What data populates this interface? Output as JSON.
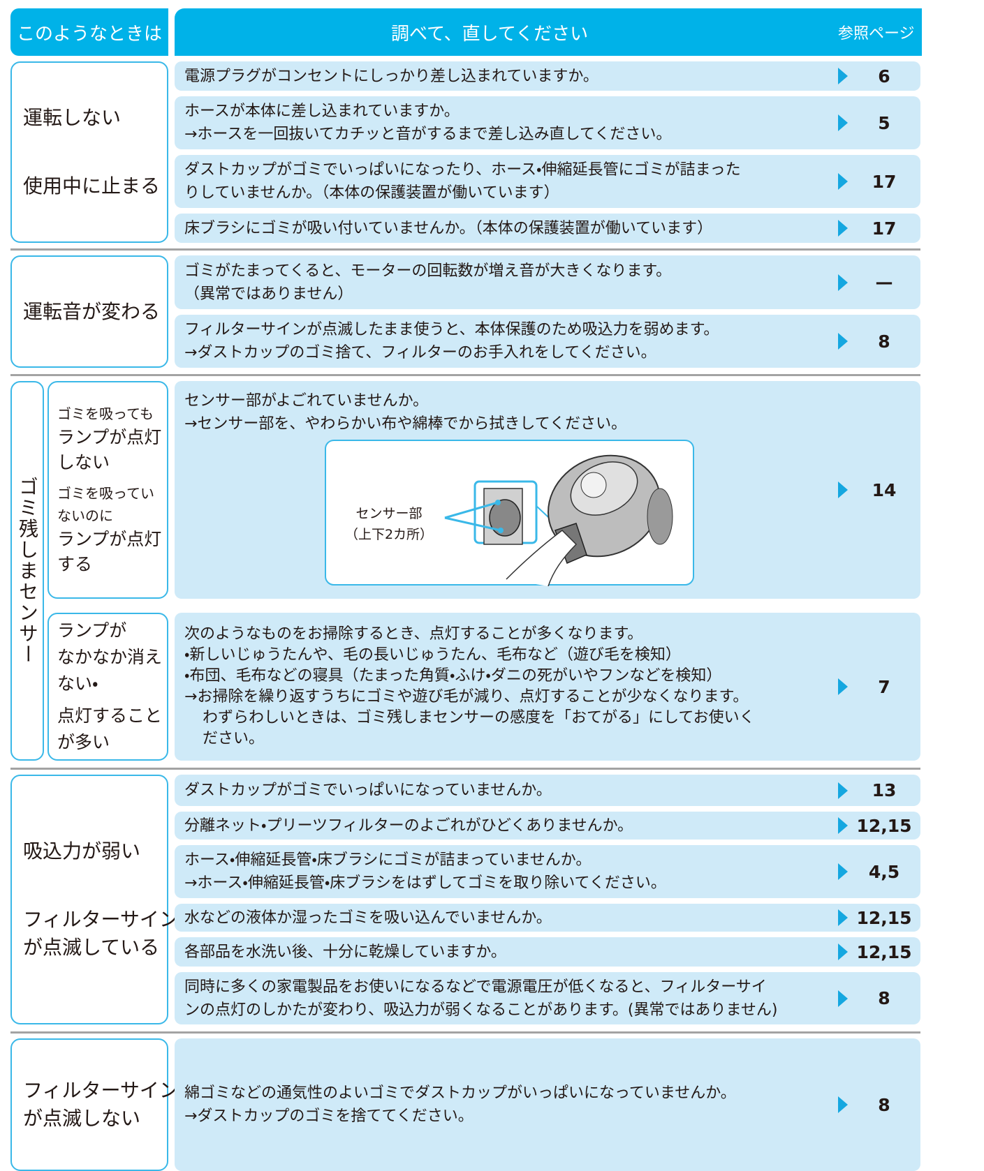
{
  "header": {
    "symptom": "このようなときは",
    "remedy": "調べて、直してください",
    "page": "参照ページ"
  },
  "sections": [
    {
      "symptoms": [
        [
          "運転しない"
        ],
        [
          "使用中に止まる"
        ]
      ],
      "rows": [
        {
          "lines": [
            "電源プラグがコンセントにしっかり差し込まれていますか。"
          ],
          "page": "6"
        },
        {
          "lines": [
            "ホースが本体に差し込まれていますか。",
            "→ホースを一回抜いてカチッと音がするまで差し込み直してください。"
          ],
          "page": "5"
        },
        {
          "lines": [
            "ダストカップがゴミでいっぱいになったり、ホース・伸縮延長管にゴミが詰まった",
            "りしていませんか。（本体の保護装置が働いています）"
          ],
          "page": "17"
        },
        {
          "lines": [
            "床ブラシにゴミが吸い付いていませんか。（本体の保護装置が働いています）"
          ],
          "page": "17"
        }
      ]
    },
    {
      "symptoms": [
        [
          "運転音が変わる"
        ]
      ],
      "rows": [
        {
          "lines": [
            "ゴミがたまってくると、モーターの回転数が増え音が大きくなります。",
            "（異常ではありません）"
          ],
          "page": "—"
        },
        {
          "lines": [
            "フィルターサインが点滅したまま使うと、本体保護のため吸込力を弱めます。",
            "→ダストカップのゴミ捨て、フィルターのお手入れをしてください。"
          ],
          "page": "8"
        }
      ]
    },
    {
      "group": "ゴミ残しまセンサー",
      "subsections": [
        {
          "symptoms": [
            [
              "ゴミを吸っても",
              "ランプが点灯",
              "しない"
            ],
            [
              "ゴミを吸ってい",
              "ないのに",
              "ランプが点灯",
              "する"
            ]
          ],
          "rows": [
            {
              "lines": [
                "センサー部がよごれていませんか。",
                "→センサー部を、やわらかい布や綿棒でから拭きしてください。"
              ],
              "page": "14",
              "figure": {
                "labels": [
                  "センサー部",
                  "（上下2カ所）"
                ]
              }
            }
          ]
        },
        {
          "symptoms": [
            [
              "ランプが",
              "なかなか消え",
              "ない・"
            ],
            [
              "点灯すること",
              "が多い"
            ]
          ],
          "rows": [
            {
              "lines": [
                "次のようなものをお掃除するとき、点灯することが多くなります。",
                "・新しいじゅうたんや、毛の長いじゅうたん、毛布など（遊び毛を検知）",
                "・布団、毛布などの寝具（たまった角質・ふけ・ダニの死がいやフンなどを検知）",
                "→お掃除を繰り返すうちにゴミや遊び毛が減り、点灯することが少なくなります。",
                "わずらわしいときは、ゴミ残しまセンサーの感度を「おてがる」にしてお使いく",
                "ださい。"
              ],
              "page": "7"
            }
          ]
        }
      ]
    },
    {
      "symptoms": [
        [
          "吸込力が弱い"
        ],
        [
          "フィルターサイン",
          "が点滅している"
        ]
      ],
      "rows": [
        {
          "lines": [
            "ダストカップがゴミでいっぱいになっていませんか。"
          ],
          "page": "13"
        },
        {
          "lines": [
            "分離ネット・プリーツフィルターのよごれがひどくありませんか。"
          ],
          "page": "12,15"
        },
        {
          "lines": [
            "ホース・伸縮延長管・床ブラシにゴミが詰まっていませんか。",
            "→ホース・伸縮延長管・床ブラシをはずしてゴミを取り除いてください。"
          ],
          "page": "4,5"
        },
        {
          "lines": [
            "水などの液体か湿ったゴミを吸い込んでいませんか。"
          ],
          "page": "12,15"
        },
        {
          "lines": [
            "各部品を水洗い後、十分に乾燥していますか。"
          ],
          "page": "12,15"
        },
        {
          "lines": [
            "同時に多くの家電製品をお使いになるなどで電源電圧が低くなると、フィルターサイ",
            "ンの点灯のしかたが変わり、吸込力が弱くなることがあります。(異常ではありません)"
          ],
          "page": "8"
        }
      ]
    },
    {
      "symptoms": [
        [
          "フィルターサイン",
          "が点滅しない"
        ]
      ],
      "rows": [
        {
          "lines": [
            "綿ゴミなどの通気性のよいゴミでダストカップがいっぱいになっていませんか。",
            "→ダストカップのゴミを捨ててください。"
          ],
          "page": "8"
        }
      ]
    }
  ]
}
